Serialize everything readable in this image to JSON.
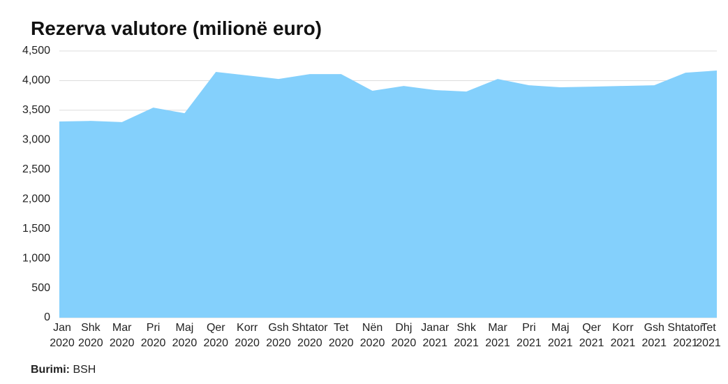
{
  "chart_data": {
    "type": "area",
    "title": "Rezerva valutore (milionë euro)",
    "categories": [
      [
        "Jan",
        "2020"
      ],
      [
        "Shk",
        "2020"
      ],
      [
        "Mar",
        "2020"
      ],
      [
        "Pri",
        "2020"
      ],
      [
        "Maj",
        "2020"
      ],
      [
        "Qer",
        "2020"
      ],
      [
        "Korr",
        "2020"
      ],
      [
        "Gsh",
        "2020"
      ],
      [
        "Shtator",
        "2020"
      ],
      [
        "Tet",
        "2020"
      ],
      [
        "Nën",
        "2020"
      ],
      [
        "Dhj",
        "2020"
      ],
      [
        "Janar",
        "2021"
      ],
      [
        "Shk",
        "2021"
      ],
      [
        "Mar",
        "2021"
      ],
      [
        "Pri",
        "2021"
      ],
      [
        "Maj",
        "2021"
      ],
      [
        "Qer",
        "2021"
      ],
      [
        "Korr",
        "2021"
      ],
      [
        "Gsh",
        "2021"
      ],
      [
        "Shtator",
        "2021"
      ],
      [
        "Tet",
        "2021"
      ]
    ],
    "values": [
      3310,
      3320,
      3300,
      3545,
      3450,
      4146,
      4087,
      4028,
      4110,
      4110,
      3828,
      3910,
      3840,
      3816,
      4028,
      3922,
      3887,
      3898,
      3910,
      3922,
      4134,
      4170
    ],
    "color": "#84d0fc",
    "ylim": [
      0,
      4500
    ],
    "yticks": [
      0,
      500,
      {
        "value": 1000,
        "label": "1,000"
      },
      {
        "value": 1500,
        "label": "1,500"
      },
      {
        "value": 2000,
        "label": "2,000"
      },
      {
        "value": 2500,
        "label": "2,500"
      },
      {
        "value": 3000,
        "label": "3,000"
      },
      {
        "value": 3500,
        "label": "3,500"
      },
      {
        "value": 4000,
        "label": "4,000"
      },
      {
        "value": 4500,
        "label": "4,500"
      }
    ],
    "grid": true,
    "source": {
      "label": "Burimi:",
      "text": "BSH"
    }
  }
}
